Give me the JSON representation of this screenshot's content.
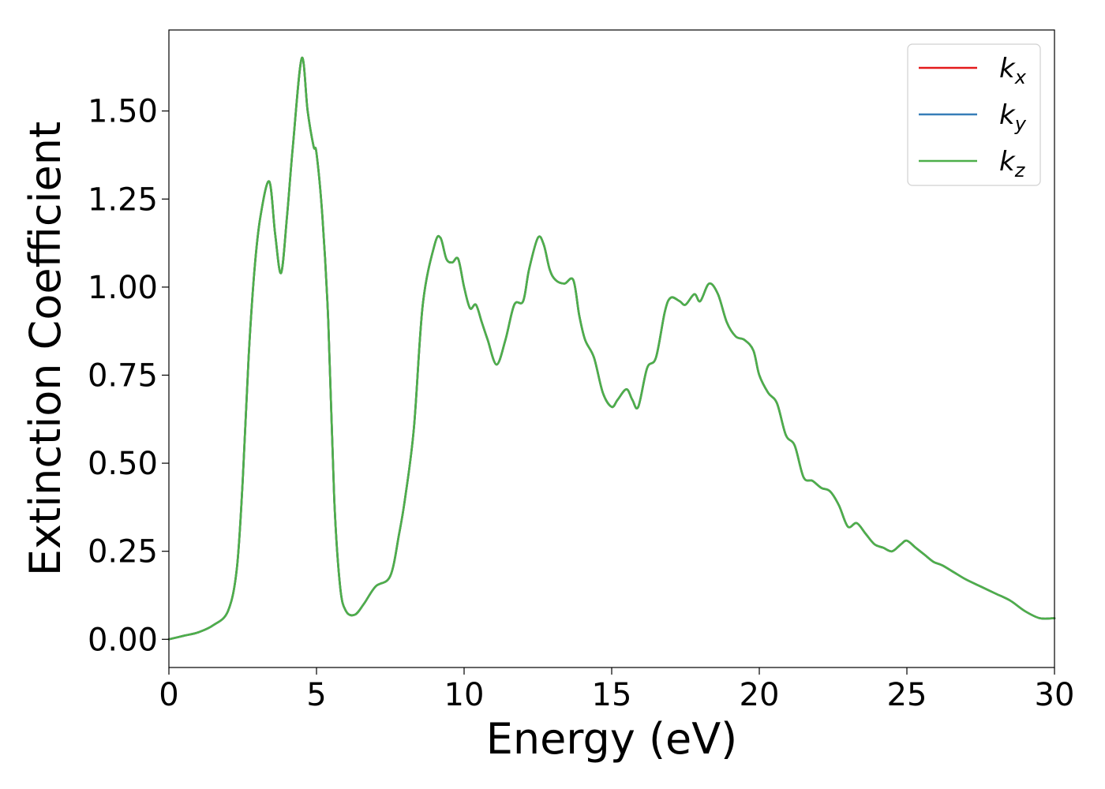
{
  "chart_data": {
    "type": "line",
    "title": "",
    "xlabel": "Energy (eV)",
    "ylabel": "Extinction Coefficient",
    "xlim": [
      0,
      30
    ],
    "ylim": [
      -0.08,
      1.73
    ],
    "xticks": [
      0,
      5,
      10,
      15,
      20,
      25,
      30
    ],
    "xtick_labels": [
      "0",
      "5",
      "10",
      "15",
      "20",
      "25",
      "30"
    ],
    "yticks": [
      0,
      0.25,
      0.5,
      0.75,
      1.0,
      1.25,
      1.5
    ],
    "ytick_labels": [
      "0.00",
      "0.25",
      "0.50",
      "0.75",
      "1.00",
      "1.25",
      "1.50"
    ],
    "grid": false,
    "legend_position": "top-right",
    "x": [
      0,
      0.5,
      1.0,
      1.5,
      2.0,
      2.3,
      2.5,
      2.7,
      2.9,
      3.1,
      3.4,
      3.6,
      3.8,
      4.0,
      4.2,
      4.5,
      4.7,
      4.9,
      5.0,
      5.2,
      5.4,
      5.6,
      5.8,
      6.0,
      6.3,
      6.6,
      7.0,
      7.5,
      7.8,
      8.0,
      8.3,
      8.6,
      9.0,
      9.2,
      9.4,
      9.6,
      9.8,
      10.0,
      10.2,
      10.4,
      10.6,
      10.8,
      11.1,
      11.4,
      11.7,
      12.0,
      12.2,
      12.5,
      12.7,
      12.9,
      13.1,
      13.4,
      13.7,
      13.9,
      14.1,
      14.4,
      14.7,
      15.0,
      15.2,
      15.5,
      15.7,
      15.9,
      16.2,
      16.5,
      16.8,
      17.0,
      17.3,
      17.5,
      17.8,
      18.0,
      18.3,
      18.6,
      18.9,
      19.2,
      19.5,
      19.8,
      20.0,
      20.3,
      20.6,
      20.9,
      21.2,
      21.5,
      21.8,
      22.1,
      22.4,
      22.7,
      23.0,
      23.3,
      23.6,
      23.9,
      24.2,
      24.5,
      24.8,
      25.0,
      25.3,
      25.6,
      25.9,
      26.2,
      26.6,
      27.0,
      27.5,
      28.0,
      28.5,
      29.0,
      29.5,
      30.0
    ],
    "series": [
      {
        "name": "k_x",
        "color": "#e41a1c",
        "values": [
          0.0,
          0.01,
          0.02,
          0.04,
          0.08,
          0.2,
          0.45,
          0.8,
          1.05,
          1.2,
          1.3,
          1.15,
          1.04,
          1.2,
          1.4,
          1.65,
          1.5,
          1.4,
          1.38,
          1.2,
          0.9,
          0.4,
          0.15,
          0.08,
          0.07,
          0.1,
          0.15,
          0.18,
          0.3,
          0.4,
          0.6,
          0.95,
          1.12,
          1.14,
          1.08,
          1.07,
          1.08,
          1.0,
          0.94,
          0.95,
          0.9,
          0.85,
          0.78,
          0.85,
          0.95,
          0.96,
          1.05,
          1.14,
          1.12,
          1.05,
          1.02,
          1.01,
          1.02,
          0.92,
          0.85,
          0.8,
          0.7,
          0.66,
          0.68,
          0.71,
          0.68,
          0.66,
          0.77,
          0.8,
          0.93,
          0.97,
          0.96,
          0.95,
          0.98,
          0.96,
          1.01,
          0.98,
          0.9,
          0.86,
          0.85,
          0.82,
          0.75,
          0.7,
          0.67,
          0.58,
          0.55,
          0.46,
          0.45,
          0.43,
          0.42,
          0.38,
          0.32,
          0.33,
          0.3,
          0.27,
          0.26,
          0.25,
          0.27,
          0.28,
          0.26,
          0.24,
          0.22,
          0.21,
          0.19,
          0.17,
          0.15,
          0.13,
          0.11,
          0.08,
          0.06,
          0.06
        ]
      },
      {
        "name": "k_y",
        "color": "#377eb8",
        "values": [
          0.0,
          0.01,
          0.02,
          0.04,
          0.08,
          0.2,
          0.45,
          0.8,
          1.05,
          1.2,
          1.3,
          1.15,
          1.04,
          1.2,
          1.4,
          1.65,
          1.5,
          1.4,
          1.38,
          1.2,
          0.9,
          0.4,
          0.15,
          0.08,
          0.07,
          0.1,
          0.15,
          0.18,
          0.3,
          0.4,
          0.6,
          0.95,
          1.12,
          1.14,
          1.08,
          1.07,
          1.08,
          1.0,
          0.94,
          0.95,
          0.9,
          0.85,
          0.78,
          0.85,
          0.95,
          0.96,
          1.05,
          1.14,
          1.12,
          1.05,
          1.02,
          1.01,
          1.02,
          0.92,
          0.85,
          0.8,
          0.7,
          0.66,
          0.68,
          0.71,
          0.68,
          0.66,
          0.77,
          0.8,
          0.93,
          0.97,
          0.96,
          0.95,
          0.98,
          0.96,
          1.01,
          0.98,
          0.9,
          0.86,
          0.85,
          0.82,
          0.75,
          0.7,
          0.67,
          0.58,
          0.55,
          0.46,
          0.45,
          0.43,
          0.42,
          0.38,
          0.32,
          0.33,
          0.3,
          0.27,
          0.26,
          0.25,
          0.27,
          0.28,
          0.26,
          0.24,
          0.22,
          0.21,
          0.19,
          0.17,
          0.15,
          0.13,
          0.11,
          0.08,
          0.06,
          0.06
        ]
      },
      {
        "name": "k_z",
        "color": "#4daf4a",
        "values": [
          0.0,
          0.01,
          0.02,
          0.04,
          0.08,
          0.2,
          0.45,
          0.8,
          1.05,
          1.2,
          1.3,
          1.15,
          1.04,
          1.2,
          1.4,
          1.65,
          1.5,
          1.4,
          1.38,
          1.2,
          0.9,
          0.4,
          0.15,
          0.08,
          0.07,
          0.1,
          0.15,
          0.18,
          0.3,
          0.4,
          0.6,
          0.95,
          1.12,
          1.14,
          1.08,
          1.07,
          1.08,
          1.0,
          0.94,
          0.95,
          0.9,
          0.85,
          0.78,
          0.85,
          0.95,
          0.96,
          1.05,
          1.14,
          1.12,
          1.05,
          1.02,
          1.01,
          1.02,
          0.92,
          0.85,
          0.8,
          0.7,
          0.66,
          0.68,
          0.71,
          0.68,
          0.66,
          0.77,
          0.8,
          0.93,
          0.97,
          0.96,
          0.95,
          0.98,
          0.96,
          1.01,
          0.98,
          0.9,
          0.86,
          0.85,
          0.82,
          0.75,
          0.7,
          0.67,
          0.58,
          0.55,
          0.46,
          0.45,
          0.43,
          0.42,
          0.38,
          0.32,
          0.33,
          0.3,
          0.27,
          0.26,
          0.25,
          0.27,
          0.28,
          0.26,
          0.24,
          0.22,
          0.21,
          0.19,
          0.17,
          0.15,
          0.13,
          0.11,
          0.08,
          0.06,
          0.06
        ]
      }
    ],
    "legend": [
      {
        "base": "k",
        "sub": "x",
        "color": "#e41a1c"
      },
      {
        "base": "k",
        "sub": "y",
        "color": "#377eb8"
      },
      {
        "base": "k",
        "sub": "z",
        "color": "#4daf4a"
      }
    ]
  }
}
